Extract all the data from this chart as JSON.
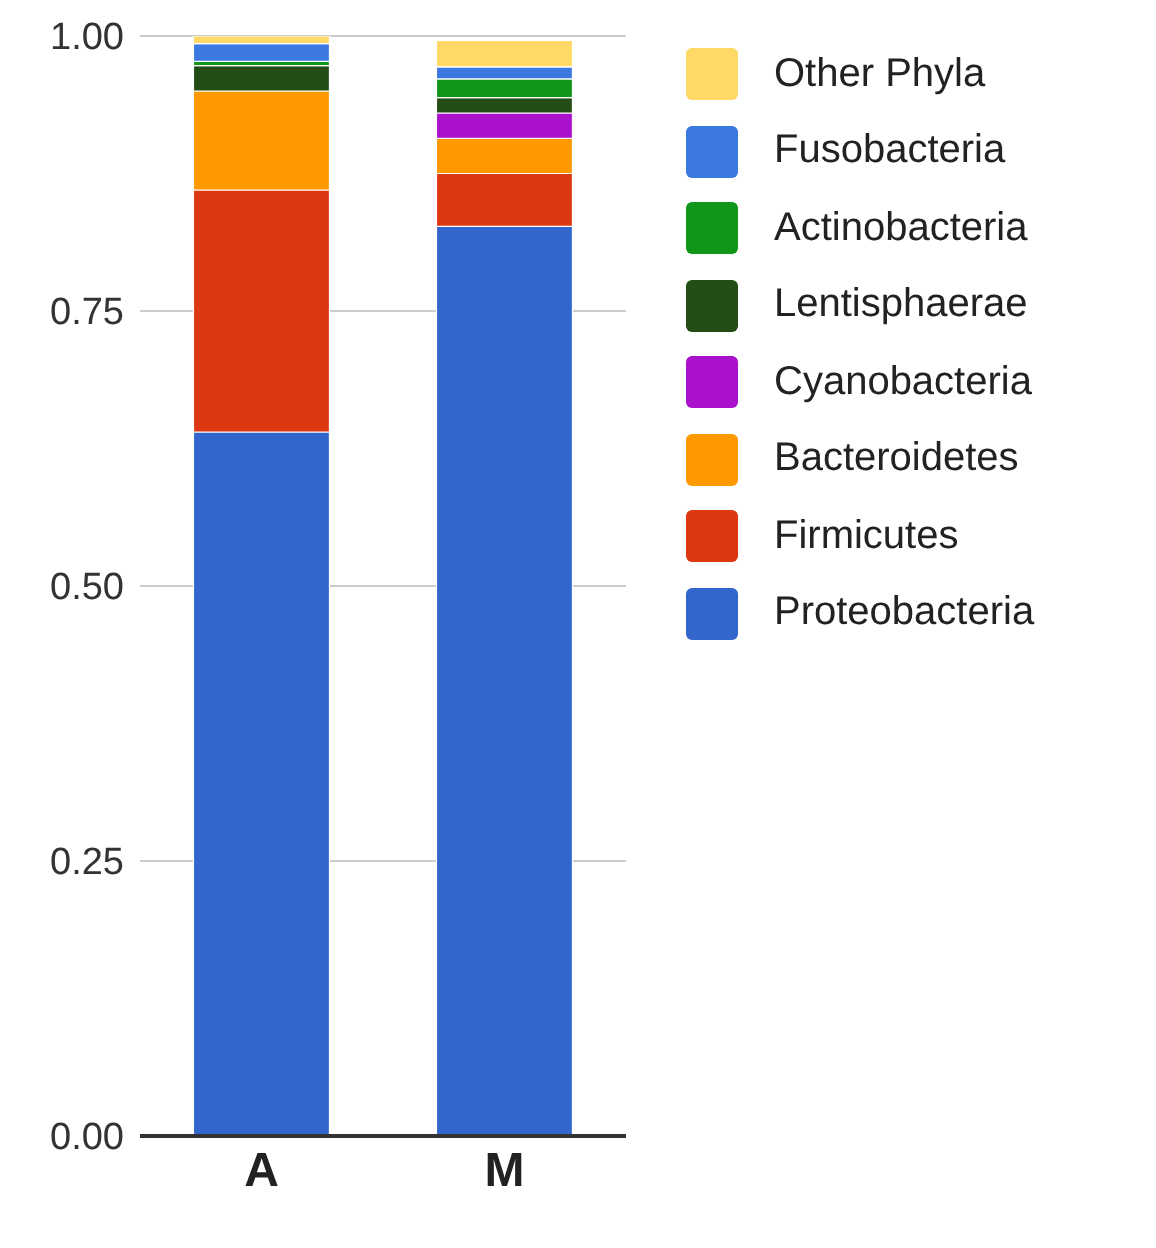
{
  "chart_data": {
    "type": "bar",
    "stacked": true,
    "categories": [
      "A",
      "M"
    ],
    "series": [
      {
        "name": "Proteobacteria",
        "color": "#3366cc",
        "values": [
          0.64,
          0.827
        ]
      },
      {
        "name": "Firmicutes",
        "color": "#dc3912",
        "values": [
          0.22,
          0.048
        ]
      },
      {
        "name": "Bacteroidetes",
        "color": "#ff9900",
        "values": [
          0.09,
          0.032
        ]
      },
      {
        "name": "Cyanobacteria",
        "color": "#aa11cc",
        "values": [
          0,
          0.023
        ]
      },
      {
        "name": "Lentisphaerae",
        "color": "#224d14",
        "values": [
          0.023,
          0.014
        ]
      },
      {
        "name": "Actinobacteria",
        "color": "#109618",
        "values": [
          0.004,
          0.017
        ]
      },
      {
        "name": "Fusobacteria",
        "color": "#3b78e0",
        "values": [
          0.016,
          0.011
        ]
      },
      {
        "name": "Other Phyla",
        "color": "#ffd966",
        "values": [
          0.007,
          0.024
        ]
      }
    ],
    "ylim": [
      0,
      1
    ],
    "yticks": [
      {
        "value": 0,
        "label": "0.00"
      },
      {
        "value": 0.25,
        "label": "0.25"
      },
      {
        "value": 0.5,
        "label": "0.50"
      },
      {
        "value": 0.75,
        "label": "0.75"
      },
      {
        "value": 1,
        "label": "1.00"
      }
    ],
    "grid": "y",
    "legend": "right"
  }
}
